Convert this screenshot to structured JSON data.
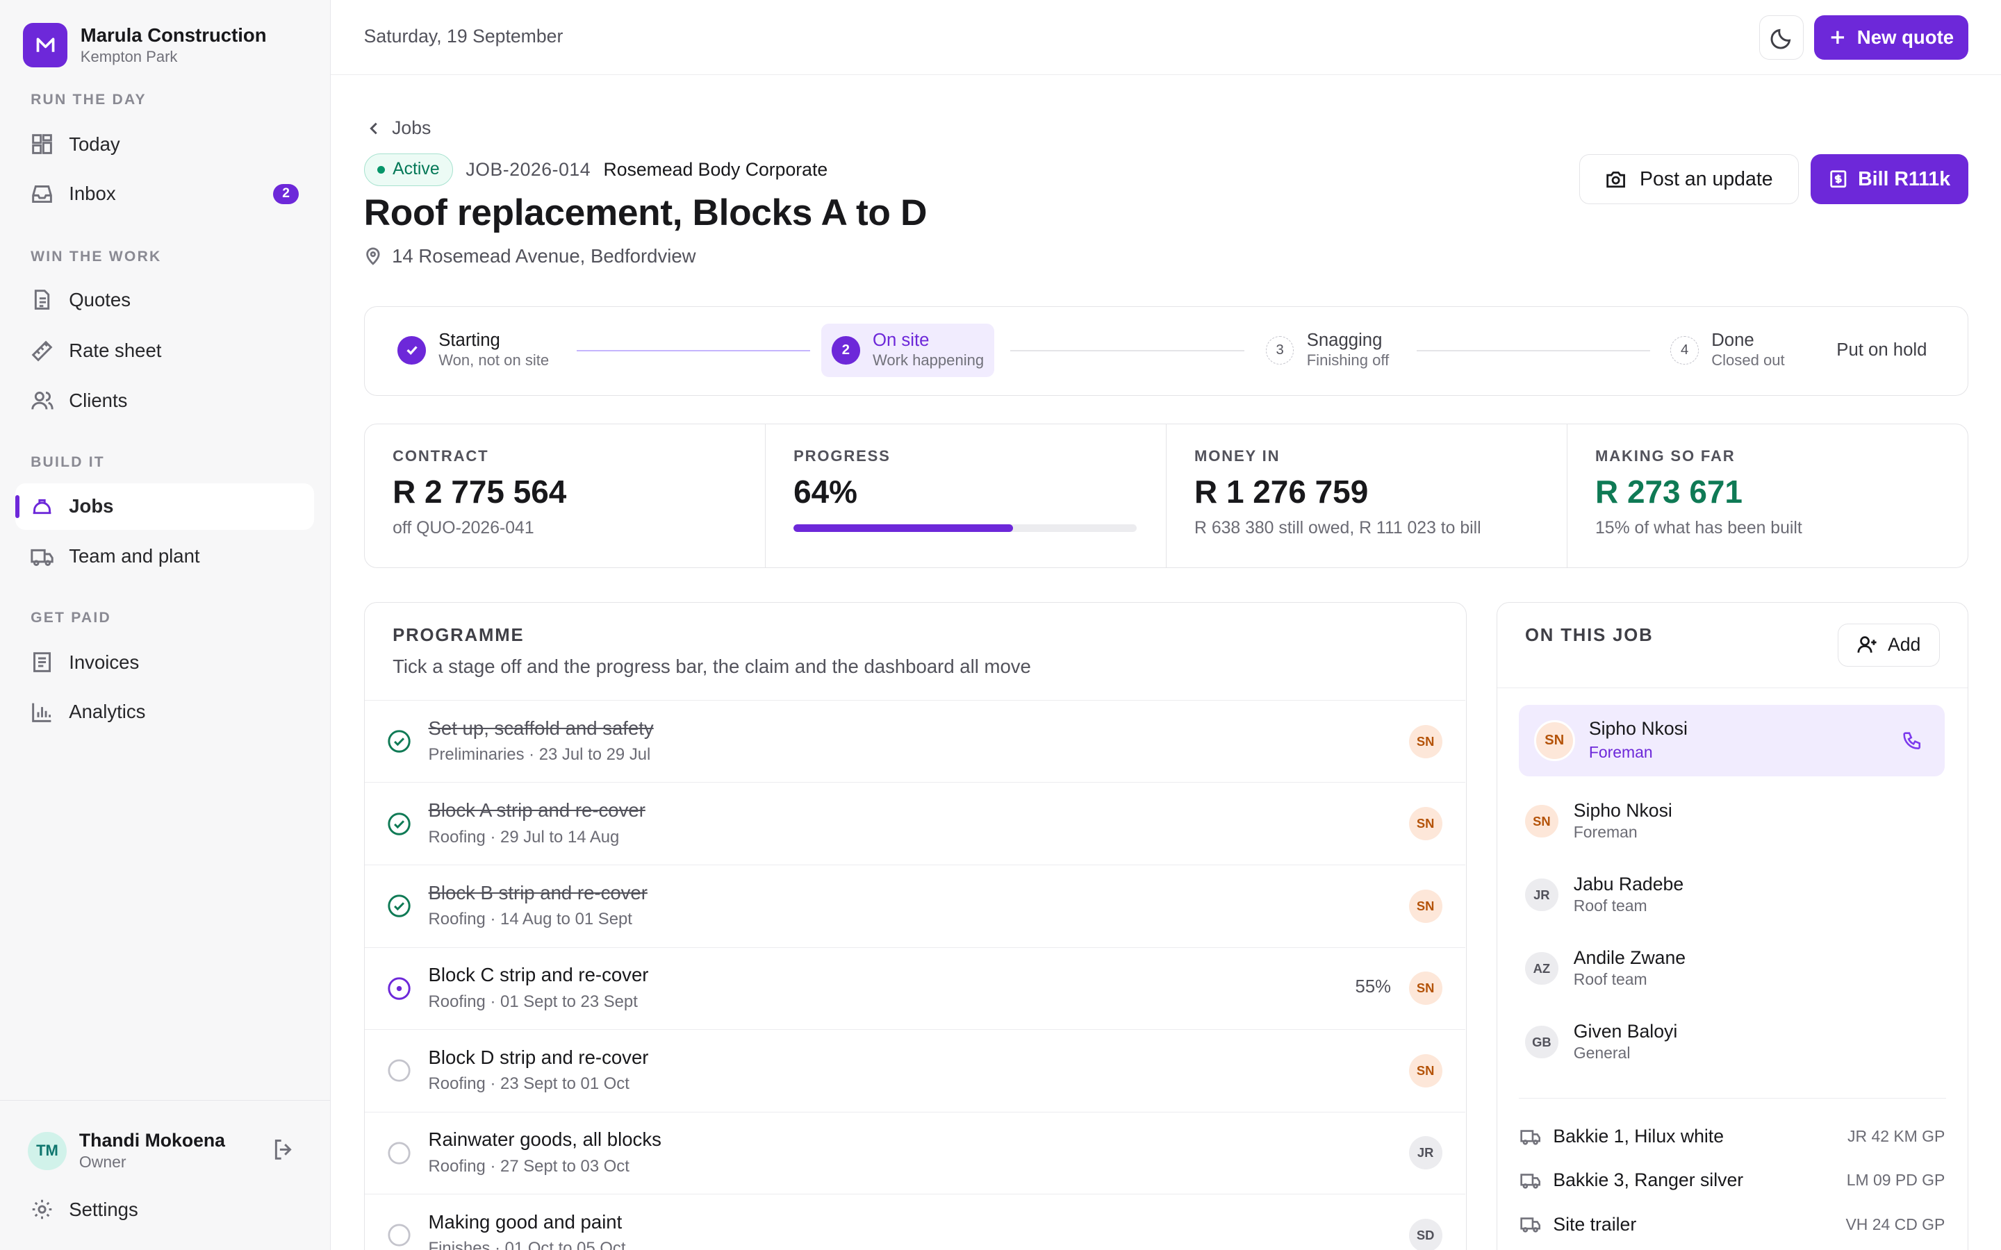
{
  "company": {
    "name": "Marula Construction",
    "location": "Kempton Park"
  },
  "nav": {
    "sections": [
      "RUN THE DAY",
      "WIN THE WORK",
      "BUILD IT",
      "GET PAID"
    ],
    "today": "Today",
    "inbox": "Inbox",
    "inbox_count": "2",
    "quotes": "Quotes",
    "rate_sheet": "Rate sheet",
    "clients": "Clients",
    "jobs": "Jobs",
    "team": "Team and plant",
    "invoices": "Invoices",
    "analytics": "Analytics"
  },
  "user": {
    "initials": "TM",
    "name": "Thandi Mokoena",
    "role": "Owner"
  },
  "settings_label": "Settings",
  "topbar": {
    "date": "Saturday, 19 September",
    "new_quote": "New quote"
  },
  "job": {
    "back": "Jobs",
    "status": "Active",
    "id": "JOB-2026-014",
    "client": "Rosemead Body Corporate",
    "title": "Roof replacement, Blocks A to D",
    "address": "14 Rosemead Avenue, Bedfordview",
    "post_update": "Post an update",
    "bill": "Bill R111k"
  },
  "stages": [
    {
      "num": "1",
      "title": "Starting",
      "sub": "Won, not on site"
    },
    {
      "num": "2",
      "title": "On site",
      "sub": "Work happening"
    },
    {
      "num": "3",
      "title": "Snagging",
      "sub": "Finishing off"
    },
    {
      "num": "4",
      "title": "Done",
      "sub": "Closed out"
    }
  ],
  "put_on_hold": "Put on hold",
  "stats": {
    "contract": {
      "label": "CONTRACT",
      "value": "R 2 775 564",
      "sub": "off QUO-2026-041"
    },
    "progress": {
      "label": "PROGRESS",
      "value": "64%",
      "fraction": 0.64
    },
    "money_in": {
      "label": "MONEY IN",
      "value": "R 1 276 759",
      "sub": "R 638 380 still owed, R 111 023 to bill"
    },
    "making": {
      "label": "MAKING SO FAR",
      "value": "R 273 671",
      "sub": "15% of what has been built"
    }
  },
  "programme": {
    "title": "PROGRAMME",
    "subtitle": "Tick a stage off and the progress bar, the claim and the dashboard all move",
    "rows": [
      {
        "title": "Set up, scaffold and safety",
        "meta": "Preliminaries · 23 Jul to 29 Jul",
        "ini": "SN"
      },
      {
        "title": "Block A strip and re-cover",
        "meta": "Roofing · 29 Jul to 14 Aug",
        "ini": "SN"
      },
      {
        "title": "Block B strip and re-cover",
        "meta": "Roofing · 14 Aug to 01 Sept",
        "ini": "SN"
      },
      {
        "title": "Block C strip and re-cover",
        "meta": "Roofing · 01 Sept to 23 Sept",
        "ini": "SN",
        "pct": "55%"
      },
      {
        "title": "Block D strip and re-cover",
        "meta": "Roofing · 23 Sept to 01 Oct",
        "ini": "SN"
      },
      {
        "title": "Rainwater goods, all blocks",
        "meta": "Roofing · 27 Sept to 03 Oct",
        "ini": "JR"
      },
      {
        "title": "Making good and paint",
        "meta": "Finishes · 01 Oct to 05 Oct",
        "ini": "SD"
      }
    ]
  },
  "team": {
    "title": "ON THIS JOB",
    "add": "Add",
    "lead": {
      "ini": "SN",
      "name": "Sipho Nkosi",
      "role": "Foreman"
    },
    "members": [
      {
        "ini": "SN",
        "name": "Sipho Nkosi",
        "role": "Foreman"
      },
      {
        "ini": "JR",
        "name": "Jabu Radebe",
        "role": "Roof team"
      },
      {
        "ini": "AZ",
        "name": "Andile Zwane",
        "role": "Roof team"
      },
      {
        "ini": "GB",
        "name": "Given Baloyi",
        "role": "General"
      }
    ],
    "vehicles": [
      {
        "name": "Bakkie 1, Hilux white",
        "plate": "JR 42 KM GP"
      },
      {
        "name": "Bakkie 3, Ranger silver",
        "plate": "LM 09 PD GP"
      },
      {
        "name": "Site trailer",
        "plate": "VH 24 CD GP"
      }
    ]
  }
}
